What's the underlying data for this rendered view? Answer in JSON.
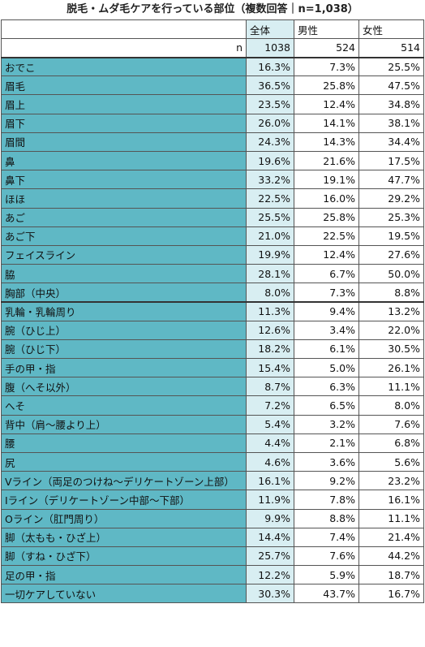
{
  "title": "脱毛・ムダ毛ケアを行っている部位（複数回答｜n=1,038）",
  "headers": [
    "",
    "全体",
    "男性",
    "女性"
  ],
  "n_row": {
    "label": "n",
    "values": [
      "1038",
      "524",
      "514"
    ]
  },
  "rows": [
    {
      "label": "おでこ",
      "values": [
        "16.3%",
        "7.3%",
        "25.5%"
      ]
    },
    {
      "label": "眉毛",
      "values": [
        "36.5%",
        "25.8%",
        "47.5%"
      ]
    },
    {
      "label": "眉上",
      "values": [
        "23.5%",
        "12.4%",
        "34.8%"
      ]
    },
    {
      "label": "眉下",
      "values": [
        "26.0%",
        "14.1%",
        "38.1%"
      ]
    },
    {
      "label": "眉間",
      "values": [
        "24.3%",
        "14.3%",
        "34.4%"
      ]
    },
    {
      "label": "鼻",
      "values": [
        "19.6%",
        "21.6%",
        "17.5%"
      ]
    },
    {
      "label": "鼻下",
      "values": [
        "33.2%",
        "19.1%",
        "47.7%"
      ]
    },
    {
      "label": "ほほ",
      "values": [
        "22.5%",
        "16.0%",
        "29.2%"
      ]
    },
    {
      "label": "あご",
      "values": [
        "25.5%",
        "25.8%",
        "25.3%"
      ]
    },
    {
      "label": "あご下",
      "values": [
        "21.0%",
        "22.5%",
        "19.5%"
      ]
    },
    {
      "label": "フェイスライン",
      "values": [
        "19.9%",
        "12.4%",
        "27.6%"
      ]
    },
    {
      "label": "脇",
      "values": [
        "28.1%",
        "6.7%",
        "50.0%"
      ]
    },
    {
      "label": "胸部（中央）",
      "values": [
        "8.0%",
        "7.3%",
        "8.8%"
      ]
    },
    {
      "label": "乳輪・乳輪周り",
      "values": [
        "11.3%",
        "9.4%",
        "13.2%"
      ]
    },
    {
      "label": "腕（ひじ上）",
      "values": [
        "12.6%",
        "3.4%",
        "22.0%"
      ]
    },
    {
      "label": "腕（ひじ下）",
      "values": [
        "18.2%",
        "6.1%",
        "30.5%"
      ]
    },
    {
      "label": "手の甲・指",
      "values": [
        "15.4%",
        "5.0%",
        "26.1%"
      ]
    },
    {
      "label": "腹（へそ以外）",
      "values": [
        "8.7%",
        "6.3%",
        "11.1%"
      ]
    },
    {
      "label": "へそ",
      "values": [
        "7.2%",
        "6.5%",
        "8.0%"
      ]
    },
    {
      "label": "背中（肩～腰より上）",
      "values": [
        "5.4%",
        "3.2%",
        "7.6%"
      ]
    },
    {
      "label": "腰",
      "values": [
        "4.4%",
        "2.1%",
        "6.8%"
      ]
    },
    {
      "label": "尻",
      "values": [
        "4.6%",
        "3.6%",
        "5.6%"
      ]
    },
    {
      "label": "Vライン（両足のつけね～デリケートゾーン上部）",
      "values": [
        "16.1%",
        "9.2%",
        "23.2%"
      ]
    },
    {
      "label": "Iライン（デリケートゾーン中部～下部）",
      "values": [
        "11.9%",
        "7.8%",
        "16.1%"
      ]
    },
    {
      "label": "Oライン（肛門周り）",
      "values": [
        "9.9%",
        "8.8%",
        "11.1%"
      ]
    },
    {
      "label": "脚（太もも・ひざ上）",
      "values": [
        "14.4%",
        "7.4%",
        "21.4%"
      ]
    },
    {
      "label": "脚（すね・ひざ下）",
      "values": [
        "25.7%",
        "7.6%",
        "44.2%"
      ]
    },
    {
      "label": "足の甲・指",
      "values": [
        "12.2%",
        "5.9%",
        "18.7%"
      ]
    },
    {
      "label": "一切ケアしていない",
      "values": [
        "30.3%",
        "43.7%",
        "16.7%"
      ]
    }
  ],
  "colors": {
    "label_bg": "#5fb8c5",
    "total_bg": "#d8eef2",
    "value_bg": "#ffffff"
  }
}
